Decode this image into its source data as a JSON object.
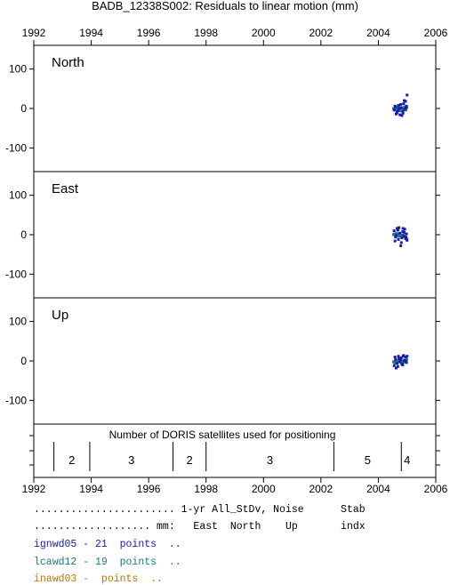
{
  "title": "BADB_12338S002: Residuals to linear motion (mm)",
  "colors": {
    "ignwd05": "#1a1aa8",
    "lcawd12": "#1e7a78",
    "inawd03": "#b8740c",
    "frame": "#000000"
  },
  "chart_data": [
    {
      "type": "scatter",
      "panel": "North",
      "xlim": [
        1992,
        2006
      ],
      "ylim": [
        -160,
        160
      ],
      "x_ticks": [
        "1992",
        "1994",
        "1996",
        "1998",
        "2000",
        "2002",
        "2004",
        "2006"
      ],
      "y_ticks": [
        "100",
        "0",
        "-100"
      ],
      "series": [
        {
          "name": "ignwd05",
          "points": [
            [
              2004.55,
              -4
            ],
            [
              2004.6,
              4
            ],
            [
              2004.65,
              -10
            ],
            [
              2004.7,
              8
            ],
            [
              2004.75,
              -16
            ],
            [
              2004.8,
              2
            ],
            [
              2004.85,
              -8
            ],
            [
              2004.88,
              12
            ],
            [
              2004.92,
              -2
            ],
            [
              2004.95,
              18
            ],
            [
              2004.98,
              6
            ],
            [
              2005.0,
              34
            ],
            [
              2004.62,
              -14
            ],
            [
              2004.72,
              0
            ],
            [
              2004.82,
              -18
            ],
            [
              2004.9,
              20
            ],
            [
              2004.58,
              6
            ],
            [
              2004.68,
              -6
            ],
            [
              2004.78,
              10
            ],
            [
              2004.86,
              -12
            ],
            [
              2004.96,
              2
            ]
          ]
        },
        {
          "name": "lcawd12",
          "points": [
            [
              2004.56,
              -2
            ],
            [
              2004.61,
              0
            ],
            [
              2004.66,
              -4
            ],
            [
              2004.71,
              2
            ],
            [
              2004.76,
              -6
            ],
            [
              2004.81,
              0
            ],
            [
              2004.86,
              -2
            ],
            [
              2004.91,
              4
            ],
            [
              2004.96,
              -4
            ],
            [
              2004.64,
              2
            ],
            [
              2004.74,
              -2
            ],
            [
              2004.84,
              0
            ],
            [
              2004.94,
              -2
            ],
            [
              2004.59,
              -4
            ],
            [
              2004.69,
              0
            ],
            [
              2004.79,
              2
            ],
            [
              2004.89,
              -4
            ],
            [
              2004.99,
              2
            ],
            [
              2004.53,
              0
            ]
          ]
        }
      ]
    },
    {
      "type": "scatter",
      "panel": "East",
      "xlim": [
        1992,
        2006
      ],
      "ylim": [
        -160,
        160
      ],
      "x_ticks": [],
      "y_ticks": [
        "100",
        "0",
        "-100"
      ],
      "series": [
        {
          "name": "ignwd05",
          "points": [
            [
              2004.55,
              10
            ],
            [
              2004.6,
              -6
            ],
            [
              2004.65,
              16
            ],
            [
              2004.7,
              -12
            ],
            [
              2004.75,
              4
            ],
            [
              2004.8,
              -20
            ],
            [
              2004.85,
              8
            ],
            [
              2004.88,
              -4
            ],
            [
              2004.92,
              14
            ],
            [
              2004.95,
              -10
            ],
            [
              2004.98,
              2
            ],
            [
              2005.0,
              -14
            ],
            [
              2004.62,
              -2
            ],
            [
              2004.72,
              18
            ],
            [
              2004.82,
              -8
            ],
            [
              2004.9,
              6
            ],
            [
              2004.58,
              -16
            ],
            [
              2004.68,
              12
            ],
            [
              2004.78,
              -28
            ],
            [
              2004.86,
              16
            ],
            [
              2004.96,
              -6
            ]
          ]
        },
        {
          "name": "lcawd12",
          "points": [
            [
              2004.56,
              2
            ],
            [
              2004.61,
              -2
            ],
            [
              2004.66,
              0
            ],
            [
              2004.71,
              -4
            ],
            [
              2004.76,
              2
            ],
            [
              2004.81,
              -6
            ],
            [
              2004.86,
              0
            ],
            [
              2004.91,
              -2
            ],
            [
              2004.96,
              -8
            ],
            [
              2004.64,
              4
            ],
            [
              2004.74,
              -2
            ],
            [
              2004.84,
              -4
            ],
            [
              2004.94,
              -6
            ],
            [
              2004.59,
              0
            ],
            [
              2004.69,
              2
            ],
            [
              2004.79,
              -2
            ],
            [
              2004.89,
              -4
            ],
            [
              2004.99,
              -10
            ],
            [
              2004.53,
              0
            ]
          ]
        }
      ]
    },
    {
      "type": "scatter",
      "panel": "Up",
      "xlim": [
        1992,
        2006
      ],
      "ylim": [
        -160,
        160
      ],
      "x_ticks": [],
      "y_ticks": [
        "100",
        "0",
        "-100"
      ],
      "series": [
        {
          "name": "ignwd05",
          "points": [
            [
              2004.55,
              -12
            ],
            [
              2004.6,
              4
            ],
            [
              2004.65,
              -6
            ],
            [
              2004.7,
              12
            ],
            [
              2004.75,
              -2
            ],
            [
              2004.8,
              8
            ],
            [
              2004.85,
              -10
            ],
            [
              2004.88,
              14
            ],
            [
              2004.92,
              2
            ],
            [
              2004.95,
              10
            ],
            [
              2004.98,
              -4
            ],
            [
              2005.0,
              12
            ],
            [
              2004.62,
              -18
            ],
            [
              2004.72,
              6
            ],
            [
              2004.82,
              -8
            ],
            [
              2004.9,
              0
            ],
            [
              2004.58,
              10
            ],
            [
              2004.68,
              -14
            ],
            [
              2004.78,
              4
            ],
            [
              2004.86,
              12
            ],
            [
              2004.96,
              -2
            ]
          ]
        },
        {
          "name": "lcawd12",
          "points": [
            [
              2004.56,
              -4
            ],
            [
              2004.61,
              0
            ],
            [
              2004.66,
              -6
            ],
            [
              2004.71,
              2
            ],
            [
              2004.76,
              -2
            ],
            [
              2004.81,
              0
            ],
            [
              2004.86,
              -4
            ],
            [
              2004.91,
              2
            ],
            [
              2004.96,
              0
            ],
            [
              2004.64,
              -2
            ],
            [
              2004.74,
              0
            ],
            [
              2004.84,
              -2
            ],
            [
              2004.94,
              2
            ],
            [
              2004.59,
              -6
            ],
            [
              2004.69,
              0
            ],
            [
              2004.79,
              -4
            ],
            [
              2004.89,
              0
            ],
            [
              2004.99,
              4
            ],
            [
              2004.53,
              -2
            ]
          ]
        }
      ]
    },
    {
      "type": "table",
      "panel": "satellites",
      "title": "Number of DORIS satellites used for positioning",
      "xlim": [
        1992,
        2006
      ],
      "x_ticks": [
        "1992",
        "1994",
        "1996",
        "1998",
        "2000",
        "2002",
        "2004",
        "2006"
      ],
      "segments": [
        {
          "start": 1992.7,
          "end": 1993.95,
          "label": "2"
        },
        {
          "start": 1993.95,
          "end": 1996.85,
          "label": "3"
        },
        {
          "start": 1996.85,
          "end": 1998.0,
          "label": "2"
        },
        {
          "start": 1998.0,
          "end": 2002.45,
          "label": "3"
        },
        {
          "start": 2002.45,
          "end": 2004.8,
          "label": "5"
        },
        {
          "start": 2004.8,
          "end": 2005.3,
          "label": "4"
        }
      ]
    }
  ],
  "legend": {
    "header1": "....................... 1-yr All_StDv, Noise      Stab",
    "header2": "................... mm:   East  North    Up       indx",
    "rows": [
      {
        "key": "ignwd05",
        "text": "ignwd05 - 21  points  .."
      },
      {
        "key": "lcawd12",
        "text": "lcawd12 - 19  points  .."
      },
      {
        "key": "inawd03",
        "text": "inawd03 -  points  .."
      }
    ]
  }
}
